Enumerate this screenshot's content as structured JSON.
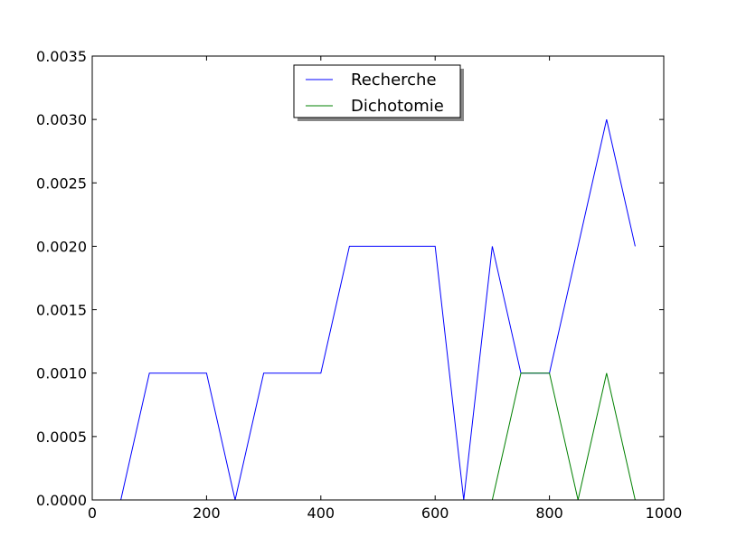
{
  "chart_data": {
    "type": "line",
    "title": "",
    "xlabel": "",
    "ylabel": "",
    "xlim": [
      0,
      1000
    ],
    "ylim": [
      0,
      0.0035
    ],
    "xticks": [
      0,
      200,
      400,
      600,
      800,
      1000
    ],
    "xtick_labels": [
      "0",
      "200",
      "400",
      "600",
      "800",
      "1000"
    ],
    "yticks": [
      0,
      0.0005,
      0.001,
      0.0015,
      0.002,
      0.0025,
      0.003,
      0.0035
    ],
    "ytick_labels": [
      "0.0000",
      "0.0005",
      "0.0010",
      "0.0015",
      "0.0020",
      "0.0025",
      "0.0030",
      "0.0035"
    ],
    "grid": false,
    "legend_position": "top-center",
    "series": [
      {
        "name": "Recherche",
        "color": "#0000ff",
        "x": [
          0,
          50,
          100,
          150,
          200,
          250,
          300,
          350,
          400,
          450,
          500,
          550,
          600,
          650,
          700,
          750,
          800,
          850,
          900,
          950
        ],
        "values": [
          0,
          0,
          0.001,
          0.001,
          0.001,
          0,
          0.001,
          0.001,
          0.001,
          0.002,
          0.002,
          0.002,
          0.002,
          0,
          0.002,
          0.001,
          0.001,
          0.002,
          0.003,
          0.002
        ]
      },
      {
        "name": "Dichotomie",
        "color": "#008000",
        "x": [
          0,
          50,
          100,
          150,
          200,
          250,
          300,
          350,
          400,
          450,
          500,
          550,
          600,
          650,
          700,
          750,
          800,
          850,
          900,
          950
        ],
        "values": [
          0,
          0,
          0,
          0,
          0,
          0,
          0,
          0,
          0,
          0,
          0,
          0,
          0,
          0,
          0,
          0.001,
          0.001,
          0,
          0.001,
          0
        ]
      }
    ]
  }
}
